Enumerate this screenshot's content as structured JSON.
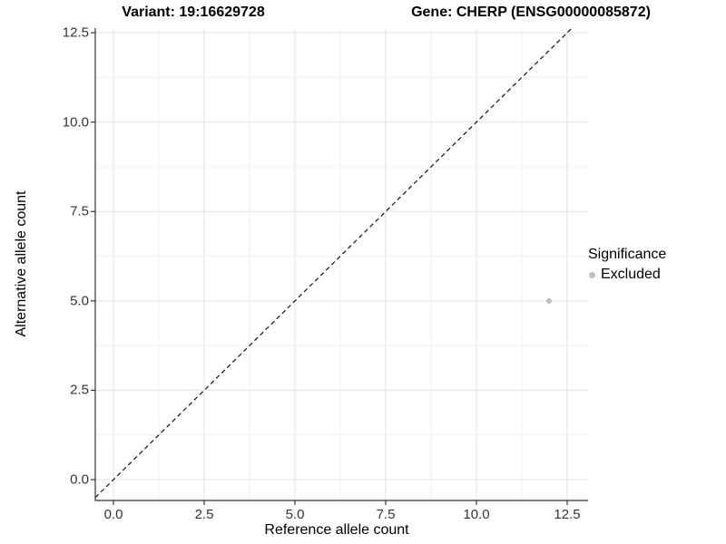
{
  "titles": {
    "variant": "Variant: 19:16629728",
    "gene": "Gene: CHERP (ENSG00000085872)"
  },
  "chart_data": {
    "type": "scatter",
    "title": "Variant: 19:16629728   Gene: CHERP (ENSG00000085872)",
    "xlabel": "Reference allele count",
    "ylabel": "Alternative allele count",
    "xlim": [
      -0.5,
      13.075
    ],
    "ylim": [
      -0.583,
      12.63
    ],
    "x_ticks": [
      "0.0",
      "2.5",
      "5.0",
      "7.5",
      "10.0",
      "12.5"
    ],
    "y_ticks": [
      "0.0",
      "2.5",
      "5.0",
      "7.5",
      "10.0",
      "12.5"
    ],
    "grid": true,
    "minor_grid": true,
    "series": [
      {
        "name": "Excluded",
        "points": [
          {
            "x": 12,
            "y": 5
          }
        ],
        "color": "#bfbfbf"
      }
    ],
    "identity_line": {
      "slope": 1,
      "intercept": 0,
      "style": "dashed",
      "color": "#111111"
    },
    "legend": {
      "title": "Significance",
      "position": "right",
      "entries": [
        {
          "label": "Excluded",
          "color": "#bfbfbf"
        }
      ]
    },
    "colors": {
      "axis_line": "#333333",
      "tick_mark": "#333333",
      "grid_major": "#e3e3e3",
      "grid_minor": "#f0f0f0",
      "background": "#ffffff"
    }
  }
}
